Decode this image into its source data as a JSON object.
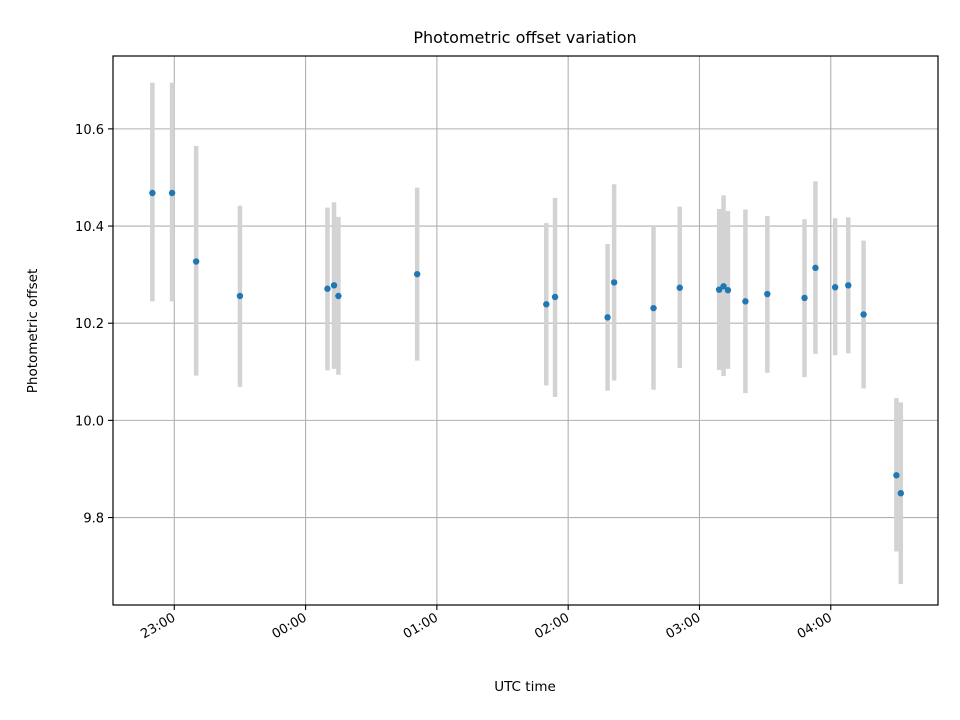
{
  "chart_data": {
    "type": "scatter",
    "title": "Photometric offset variation",
    "xlabel": "UTC time",
    "ylabel": "Photometric offset",
    "x_tick_labels": [
      "23:00",
      "00:00",
      "01:00",
      "02:00",
      "03:00",
      "04:00"
    ],
    "x_ticks_minutes": [
      -60,
      0,
      60,
      120,
      180,
      240
    ],
    "y_ticks": [
      9.8,
      10.0,
      10.2,
      10.4,
      10.6
    ],
    "xlim_minutes": [
      -88,
      289
    ],
    "ylim": [
      9.62,
      10.75
    ],
    "grid": true,
    "colors": {
      "point": "#1f77b4",
      "errorbar": "#d3d3d3",
      "grid": "#b0b0b0"
    },
    "points": [
      {
        "t": "22:50",
        "y": 10.468,
        "lo": 10.245,
        "hi": 10.695
      },
      {
        "t": "22:59",
        "y": 10.468,
        "lo": 10.245,
        "hi": 10.695
      },
      {
        "t": "23:10",
        "y": 10.327,
        "lo": 10.092,
        "hi": 10.565
      },
      {
        "t": "23:30",
        "y": 10.256,
        "lo": 10.069,
        "hi": 10.442
      },
      {
        "t": "00:10",
        "y": 10.271,
        "lo": 10.103,
        "hi": 10.438
      },
      {
        "t": "00:13",
        "y": 10.278,
        "lo": 10.106,
        "hi": 10.449
      },
      {
        "t": "00:15",
        "y": 10.256,
        "lo": 10.094,
        "hi": 10.419
      },
      {
        "t": "00:51",
        "y": 10.301,
        "lo": 10.123,
        "hi": 10.479
      },
      {
        "t": "01:50",
        "y": 10.239,
        "lo": 10.072,
        "hi": 10.406
      },
      {
        "t": "01:54",
        "y": 10.254,
        "lo": 10.048,
        "hi": 10.458
      },
      {
        "t": "02:18",
        "y": 10.212,
        "lo": 10.061,
        "hi": 10.363
      },
      {
        "t": "02:21",
        "y": 10.284,
        "lo": 10.082,
        "hi": 10.486
      },
      {
        "t": "02:39",
        "y": 10.231,
        "lo": 10.063,
        "hi": 10.4
      },
      {
        "t": "02:51",
        "y": 10.273,
        "lo": 10.108,
        "hi": 10.44
      },
      {
        "t": "03:09",
        "y": 10.269,
        "lo": 10.104,
        "hi": 10.435
      },
      {
        "t": "03:11",
        "y": 10.276,
        "lo": 10.091,
        "hi": 10.463
      },
      {
        "t": "03:13",
        "y": 10.268,
        "lo": 10.106,
        "hi": 10.431
      },
      {
        "t": "03:21",
        "y": 10.245,
        "lo": 10.056,
        "hi": 10.434
      },
      {
        "t": "03:31",
        "y": 10.26,
        "lo": 10.098,
        "hi": 10.421
      },
      {
        "t": "03:48",
        "y": 10.252,
        "lo": 10.089,
        "hi": 10.414
      },
      {
        "t": "03:53",
        "y": 10.314,
        "lo": 10.137,
        "hi": 10.492
      },
      {
        "t": "04:02",
        "y": 10.274,
        "lo": 10.134,
        "hi": 10.416
      },
      {
        "t": "04:08",
        "y": 10.278,
        "lo": 10.138,
        "hi": 10.418
      },
      {
        "t": "04:15",
        "y": 10.218,
        "lo": 10.066,
        "hi": 10.37
      },
      {
        "t": "04:30",
        "y": 9.887,
        "lo": 9.73,
        "hi": 10.046
      },
      {
        "t": "04:32",
        "y": 9.85,
        "lo": 9.663,
        "hi": 10.037
      }
    ]
  }
}
